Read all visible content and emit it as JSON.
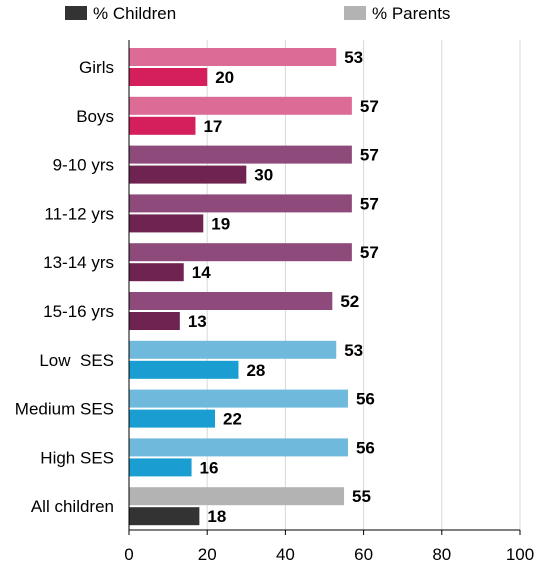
{
  "chart_data": {
    "type": "bar",
    "orientation": "horizontal",
    "categories": [
      "Girls",
      "Boys",
      "9-10 yrs",
      "11-12 yrs",
      "13-14 yrs",
      "15-16 yrs",
      "Low  SES",
      "Medium SES",
      "High SES",
      "All children"
    ],
    "series": [
      {
        "name": "% Parents",
        "values": [
          53,
          57,
          57,
          57,
          57,
          52,
          53,
          56,
          56,
          55
        ],
        "colors": [
          "#dc6b95",
          "#dc6b95",
          "#8e4a7a",
          "#8e4a7a",
          "#8e4a7a",
          "#8e4a7a",
          "#6fb9dc",
          "#6fb9dc",
          "#6fb9dc",
          "#b3b3b3"
        ]
      },
      {
        "name": "% Children",
        "values": [
          20,
          17,
          30,
          19,
          14,
          13,
          28,
          22,
          16,
          18
        ],
        "colors": [
          "#d41f5c",
          "#d41f5c",
          "#6e2350",
          "#6e2350",
          "#6e2350",
          "#6e2350",
          "#1a9dd1",
          "#1a9dd1",
          "#1a9dd1",
          "#333333"
        ]
      }
    ],
    "xlim": [
      0,
      100
    ],
    "xticks": [
      0,
      20,
      40,
      60,
      80,
      100
    ],
    "grid": true,
    "legend": {
      "position": "top",
      "entries": [
        {
          "label": "% Children",
          "color": "#333333"
        },
        {
          "label": "% Parents",
          "color": "#b3b3b3"
        }
      ]
    },
    "title": "",
    "xlabel": "",
    "ylabel": ""
  }
}
